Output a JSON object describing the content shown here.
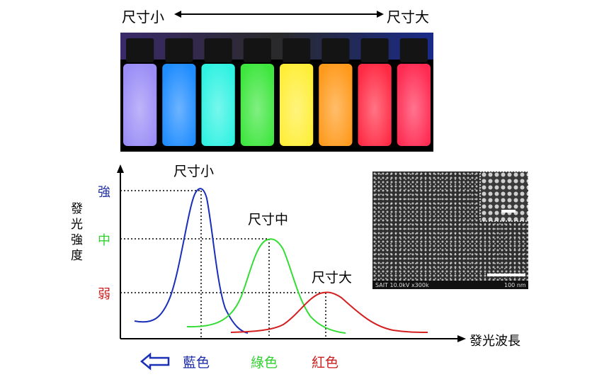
{
  "size_scale": {
    "small_label": "尺寸小",
    "large_label": "尺寸大"
  },
  "vials": {
    "colors": [
      "#9a8df6",
      "#1f8cff",
      "#2ff2e2",
      "#3ee63e",
      "#ffee38",
      "#ff9a1c",
      "#ff2a44",
      "#ff2a52"
    ]
  },
  "graph": {
    "y_axis_label": "發光強度",
    "x_axis_label": "發光波長",
    "levels": [
      {
        "label": "強",
        "color": "#1f2fa8"
      },
      {
        "label": "中",
        "color": "#2fd02f"
      },
      {
        "label": "弱",
        "color": "#c81e1e"
      }
    ],
    "peaks": [
      {
        "label": "尺寸小",
        "color": "#1a2fb8",
        "x_label": "藍色"
      },
      {
        "label": "尺寸中",
        "color": "#33dd33",
        "x_label": "綠色"
      },
      {
        "label": "尺寸大",
        "color": "#d42020",
        "x_label": "紅色"
      }
    ]
  },
  "sem": {
    "caption_left": "SAIT 10.0kV x300k",
    "caption_right": "100 nm"
  }
}
